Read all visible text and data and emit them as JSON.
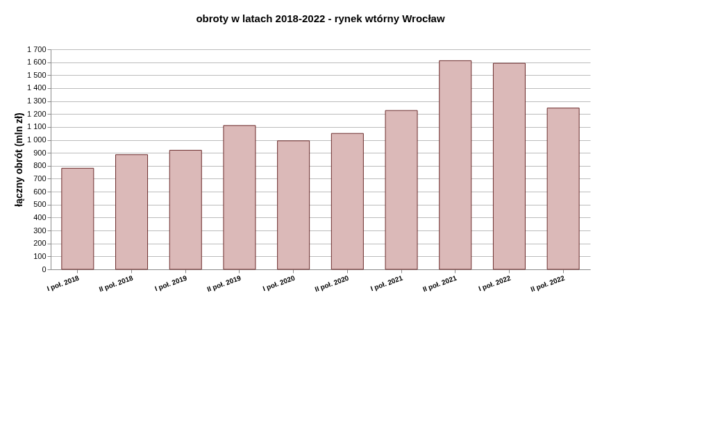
{
  "chart_data": {
    "type": "bar",
    "title": "obroty w latach 2018-2022 - rynek wtórny Wrocław",
    "ylabel": "łączny obrót (mln zł)",
    "categories": [
      "I poł. 2018",
      "II poł. 2018",
      "I poł. 2019",
      "II poł. 2019",
      "I poł. 2020",
      "II poł. 2020",
      "I poł. 2021",
      "II poł. 2021",
      "I poł. 2022",
      "II poł. 2022"
    ],
    "values": [
      781,
      886,
      920,
      1111,
      993,
      1050,
      1227,
      1612,
      1592,
      1246
    ],
    "color": "#dbb9b8",
    "ylim": [
      0,
      1700
    ],
    "yticks": [
      0,
      100,
      200,
      300,
      400,
      500,
      600,
      700,
      800,
      900,
      {
        "value": 1000,
        "label": "1 000"
      },
      {
        "value": 1100,
        "label": "1 100"
      },
      {
        "value": 1200,
        "label": "1 200"
      },
      {
        "value": 1300,
        "label": "1 300"
      },
      {
        "value": 1400,
        "label": "1 400"
      },
      {
        "value": 1500,
        "label": "1 500"
      },
      {
        "value": 1600,
        "label": "1 600"
      },
      {
        "value": 1700,
        "label": "1 700"
      }
    ],
    "grid": "y"
  }
}
